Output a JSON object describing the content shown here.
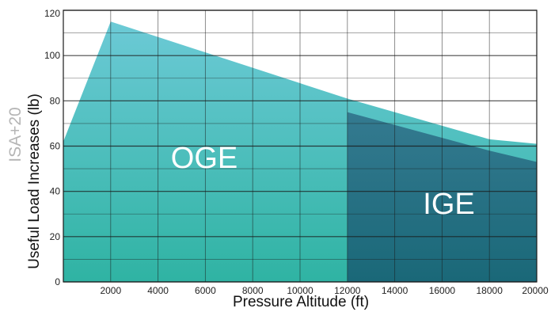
{
  "chart_data": {
    "type": "area",
    "side_label": "ISA+20",
    "xlabel": "Pressure Altitude (ft)",
    "ylabel": "Useful Load Increases (lb)",
    "xlim": [
      0,
      20000
    ],
    "ylim": [
      0,
      120
    ],
    "x_ticks": [
      2000,
      4000,
      6000,
      8000,
      10000,
      12000,
      14000,
      16000,
      18000,
      20000
    ],
    "y_ticks": [
      0,
      20,
      40,
      60,
      80,
      100,
      120
    ],
    "grid": true,
    "series": [
      {
        "name": "OGE",
        "x": [
          0,
          2000,
          12000,
          18000,
          20000
        ],
        "y": [
          62,
          115,
          81,
          63,
          61
        ]
      },
      {
        "name": "IGE",
        "x": [
          12000,
          18000,
          20000
        ],
        "y": [
          75,
          58,
          53
        ]
      }
    ],
    "colors": {
      "oge_top": "#6ccad6",
      "oge_bottom": "#2fb3a3",
      "ige_top": "#347a90",
      "ige_bottom": "#1a6878",
      "grid": "#1a1a1a"
    }
  }
}
